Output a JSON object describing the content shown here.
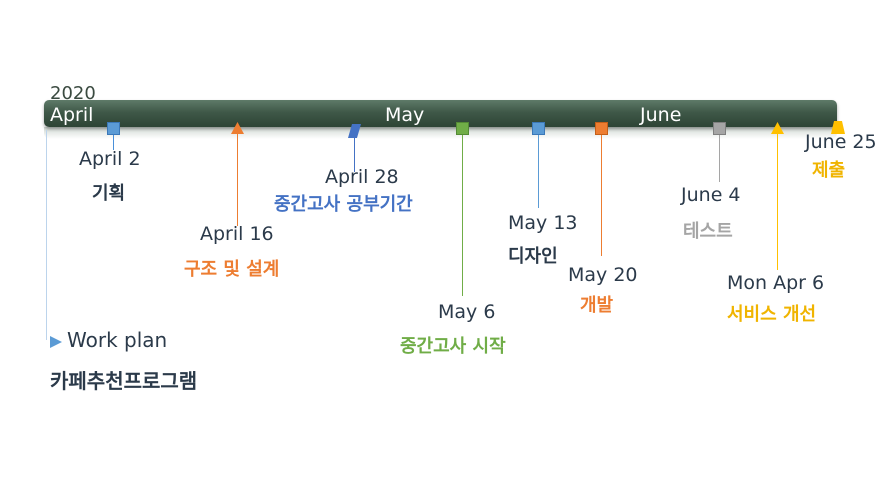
{
  "timeline": {
    "year": "2020",
    "months": [
      {
        "name": "April"
      },
      {
        "name": "May"
      },
      {
        "name": "June"
      }
    ]
  },
  "milestones": [
    {
      "id": "plan",
      "date": "April  2",
      "label": "기획",
      "color": "#4a90d9",
      "label_color": "#2b3a4a",
      "shape": "square"
    },
    {
      "id": "design",
      "date": "April 16",
      "label": "구조 및 설계",
      "color": "#ed7d31",
      "label_color": "#ed7d31",
      "shape": "triangle"
    },
    {
      "id": "study",
      "date": "April 28",
      "label": "중간고사 공부기간",
      "color": "#4472c4",
      "label_color": "#4472c4",
      "shape": "parallelogram"
    },
    {
      "id": "exam",
      "date": "May 6",
      "label": "중간고사 시작",
      "color": "#70ad47",
      "label_color": "#70ad47",
      "shape": "square"
    },
    {
      "id": "uidesign",
      "date": "May 13",
      "label": "디자인",
      "color": "#5b9bd5",
      "label_color": "#2b3a4a",
      "shape": "square"
    },
    {
      "id": "dev",
      "date": "May 20",
      "label": "개발",
      "color": "#ed7d31",
      "label_color": "#ed7d31",
      "shape": "square"
    },
    {
      "id": "test",
      "date": "June 4",
      "label": "테스트",
      "color": "#a5a5a5",
      "label_color": "#a5a5a5",
      "shape": "square"
    },
    {
      "id": "improve",
      "date": "Mon Apr 6",
      "label": "서비스 개선",
      "color": "#ffc000",
      "label_color": "#f0b400",
      "shape": "triangle"
    },
    {
      "id": "submit",
      "date": "June 25",
      "label": "제출",
      "color": "#ffc000",
      "label_color": "#f0b400",
      "shape": "trapezoid"
    }
  ],
  "work_plan": {
    "label": "Work plan",
    "project": "카페추천프로그램"
  }
}
